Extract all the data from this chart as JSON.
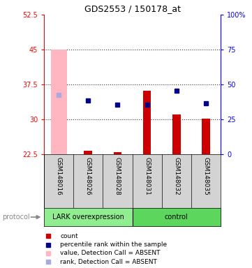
{
  "title": "GDS2553 / 150178_at",
  "samples": [
    "GSM148016",
    "GSM148026",
    "GSM148028",
    "GSM148031",
    "GSM148032",
    "GSM148035"
  ],
  "ylim_left": [
    22.5,
    52.5
  ],
  "ylim_right": [
    0,
    100
  ],
  "yticks_left": [
    22.5,
    30,
    37.5,
    45,
    52.5
  ],
  "yticks_right": [
    0,
    25,
    50,
    75,
    100
  ],
  "ytick_labels_left": [
    "22.5",
    "30",
    "37.5",
    "45",
    "52.5"
  ],
  "ytick_labels_right": [
    "0",
    "25",
    "50",
    "75",
    "100%"
  ],
  "count_values": [
    null,
    23.2,
    22.9,
    36.2,
    31.1,
    30.1
  ],
  "rank_values": [
    35.2,
    34.0,
    33.2,
    33.2,
    36.2,
    33.5
  ],
  "value_absent": [
    45.0,
    null,
    null,
    null,
    null,
    null
  ],
  "rank_absent": [
    35.2,
    null,
    null,
    null,
    null,
    null
  ],
  "bar_color_dark_red": "#CC0000",
  "bar_color_pink": "#FFB6C1",
  "dot_color_blue": "#00008B",
  "dot_color_lightblue": "#AAAADD",
  "group1_color": "#90EE90",
  "group2_color": "#5CD65C",
  "group1_label": "LARK overexpression",
  "group2_label": "control",
  "protocol_label": "protocol",
  "legend_labels": [
    "count",
    "percentile rank within the sample",
    "value, Detection Call = ABSENT",
    "rank, Detection Call = ABSENT"
  ],
  "legend_colors": [
    "#CC0000",
    "#00008B",
    "#FFB6C1",
    "#AAAADD"
  ]
}
